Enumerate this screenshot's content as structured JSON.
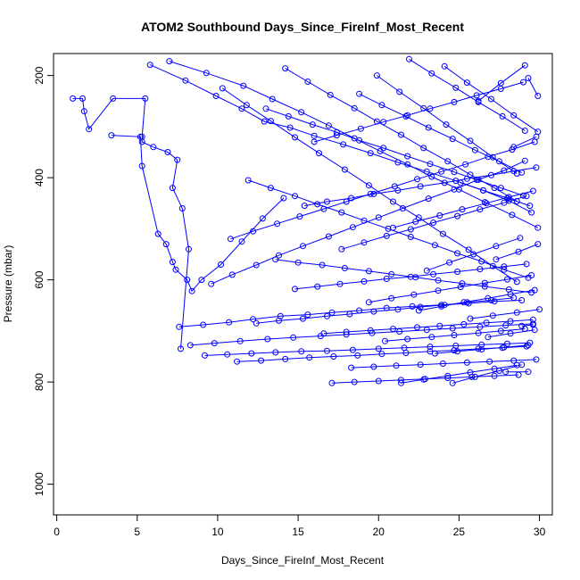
{
  "chart_data": {
    "type": "line",
    "title": "ATOM2 Southbound Days_Since_FireInf_Most_Recent",
    "xlabel": "Days_Since_FireInf_Most_Recent",
    "ylabel": "Pressure (mbar)",
    "xlim": [
      -0.2,
      30.8
    ],
    "ylim": [
      1060,
      157
    ],
    "y_reversed": true,
    "grid": false,
    "legend": "none",
    "x_ticks": [
      0,
      5,
      10,
      15,
      20,
      25,
      30
    ],
    "y_ticks": [
      200,
      400,
      600,
      800,
      1000
    ],
    "color": "#0000ff",
    "marker": "open-circle",
    "series": [
      {
        "x": [
          1.0,
          1.6,
          1.7,
          2.0,
          3.5,
          5.5,
          5.3,
          5.3,
          6.0,
          6.9,
          7.5,
          7.2,
          7.8,
          8.2,
          7.7
        ],
        "y": [
          245,
          245,
          270,
          305,
          245,
          245,
          320,
          330,
          340,
          350,
          365,
          420,
          460,
          540,
          735
        ]
      },
      {
        "x": [
          3.4,
          5.2,
          5.3,
          6.3,
          6.8,
          7.2,
          7.4,
          8.1,
          8.4,
          9.0,
          10.2,
          11.5,
          12.8,
          14.1
        ],
        "y": [
          317,
          320,
          377,
          510,
          530,
          565,
          580,
          600,
          622,
          600,
          570,
          525,
          480,
          440
        ]
      },
      {
        "x": [
          5.8,
          8.0,
          9.9,
          11.5,
          12.9,
          14.5,
          16.0,
          17.8,
          19.5,
          21.2,
          23.0,
          24.8,
          26.5,
          28.1,
          29.5
        ],
        "y": [
          179,
          210,
          240,
          265,
          290,
          302,
          318,
          335,
          352,
          370,
          388,
          406,
          425,
          445,
          468
        ]
      },
      {
        "x": [
          7.0,
          9.3,
          11.6,
          13.4,
          15.2,
          16.9,
          18.5,
          20.1,
          21.8,
          23.3,
          25.0,
          26.6,
          28.3,
          29.9
        ],
        "y": [
          172,
          195,
          220,
          246,
          272,
          298,
          323,
          348,
          374,
          398,
          423,
          448,
          473,
          498
        ]
      },
      {
        "x": [
          7.6,
          9.1,
          10.7,
          12.2,
          13.9,
          15.6,
          17.1,
          18.8,
          20.5,
          22.1,
          23.9,
          25.6,
          27.2,
          28.9
        ],
        "y": [
          692,
          688,
          683,
          677,
          671,
          668,
          664,
          660,
          655,
          652,
          649,
          646,
          642,
          640
        ]
      },
      {
        "x": [
          8.3,
          9.8,
          11.4,
          13.1,
          14.7,
          16.4,
          18.0,
          19.6,
          21.3,
          23.0,
          24.6,
          26.3,
          27.9,
          29.6
        ],
        "y": [
          728,
          724,
          720,
          716,
          713,
          710,
          707,
          704,
          701,
          698,
          695,
          692,
          689,
          686
        ]
      },
      {
        "x": [
          9.2,
          10.6,
          12.1,
          13.6,
          15.2,
          16.8,
          18.4,
          20.0,
          21.6,
          23.2,
          24.8,
          26.4,
          28.0,
          29.4
        ],
        "y": [
          748,
          746,
          744,
          742,
          740,
          739,
          737,
          735,
          733,
          731,
          729,
          727,
          725,
          723
        ]
      },
      {
        "x": [
          9.6,
          10.9,
          12.4,
          13.8,
          15.3,
          16.9,
          18.4,
          20.0,
          21.5,
          23.1,
          24.7,
          26.2,
          27.8,
          29.1
        ],
        "y": [
          608,
          590,
          571,
          552,
          534,
          515,
          497,
          478,
          460,
          441,
          423,
          404,
          386,
          367
        ]
      },
      {
        "x": [
          10.3,
          11.8,
          13.3,
          14.8,
          16.3,
          17.9,
          19.4,
          20.9,
          22.5,
          24.0,
          25.6,
          27.1,
          28.6
        ],
        "y": [
          225,
          258,
          289,
          321,
          352,
          384,
          415,
          447,
          478,
          510,
          541,
          573,
          604
        ]
      },
      {
        "x": [
          10.8,
          12.2,
          13.7,
          15.1,
          16.6,
          18.0,
          19.5,
          21.0,
          22.4,
          23.9,
          25.4,
          26.8,
          28.3,
          29.7
        ],
        "y": [
          520,
          505,
          490,
          476,
          461,
          447,
          432,
          417,
          403,
          388,
          374,
          359,
          345,
          330
        ]
      },
      {
        "x": [
          11.2,
          12.7,
          14.2,
          15.7,
          17.2,
          18.7,
          20.2,
          21.7,
          23.2,
          24.7,
          26.2,
          27.7,
          29.2
        ],
        "y": [
          760,
          758,
          755,
          752,
          750,
          748,
          745,
          743,
          740,
          738,
          735,
          733,
          730
        ]
      },
      {
        "x": [
          11.9,
          13.3,
          14.8,
          16.2,
          17.7,
          19.1,
          20.6,
          22.0,
          23.5,
          24.9,
          26.4,
          27.8,
          29.3
        ],
        "y": [
          405,
          420,
          436,
          452,
          468,
          484,
          500,
          516,
          532,
          548,
          564,
          580,
          596
        ]
      },
      {
        "x": [
          12.4,
          13.8,
          15.3,
          16.8,
          18.2,
          19.7,
          21.2,
          22.6,
          24.1,
          25.5,
          27.0,
          28.4
        ],
        "y": [
          685,
          680,
          676,
          671,
          667,
          662,
          658,
          653,
          649,
          644,
          640,
          635
        ]
      },
      {
        "x": [
          13.0,
          14.4,
          15.9,
          17.4,
          18.8,
          20.3,
          21.8,
          23.2,
          24.7,
          26.1,
          27.6,
          29.0
        ],
        "y": [
          265,
          280,
          296,
          311,
          327,
          342,
          358,
          373,
          389,
          404,
          420,
          435
        ]
      },
      {
        "x": [
          13.6,
          15.0,
          16.5,
          17.9,
          19.4,
          20.8,
          22.3,
          23.7,
          25.2,
          26.6,
          28.1,
          29.5
        ],
        "y": [
          560,
          566,
          571,
          577,
          583,
          589,
          595,
          601,
          607,
          613,
          619,
          625
        ]
      },
      {
        "x": [
          14.2,
          15.6,
          17.0,
          18.5,
          19.9,
          21.4,
          22.8,
          24.3,
          25.7,
          27.2,
          28.6
        ],
        "y": [
          186,
          212,
          238,
          264,
          290,
          316,
          342,
          368,
          394,
          420,
          446
        ]
      },
      {
        "x": [
          14.8,
          16.2,
          17.6,
          19.1,
          20.5,
          22.0,
          23.4,
          24.9,
          26.3,
          27.8,
          29.2
        ],
        "y": [
          618,
          613,
          608,
          603,
          598,
          594,
          589,
          584,
          579,
          574,
          569
        ]
      },
      {
        "x": [
          15.4,
          16.8,
          18.3,
          19.7,
          21.2,
          22.6,
          24.1,
          25.5,
          27.0,
          28.4,
          29.8
        ],
        "y": [
          455,
          447,
          440,
          432,
          425,
          417,
          410,
          402,
          395,
          387,
          380
        ]
      },
      {
        "x": [
          16.0,
          17.4,
          18.9,
          20.3,
          21.8,
          23.2,
          24.7,
          26.1,
          27.6,
          29.0
        ],
        "y": [
          330,
          317,
          304,
          291,
          278,
          265,
          252,
          239,
          226,
          213
        ]
      },
      {
        "x": [
          16.6,
          18.0,
          19.5,
          20.9,
          22.4,
          23.8,
          25.3,
          26.7,
          28.2,
          29.6
        ],
        "y": [
          705,
          702,
          699,
          696,
          693,
          690,
          687,
          684,
          681,
          678
        ]
      },
      {
        "x": [
          17.1,
          18.5,
          20.0,
          21.4,
          22.9,
          24.3,
          25.8,
          27.2,
          28.7
        ],
        "y": [
          802,
          800,
          798,
          796,
          794,
          792,
          790,
          788,
          786
        ]
      },
      {
        "x": [
          17.7,
          19.1,
          20.5,
          22.0,
          23.4,
          24.9,
          26.3,
          27.8,
          29.2
        ],
        "y": [
          540,
          527,
          514,
          501,
          488,
          475,
          462,
          449,
          436
        ]
      },
      {
        "x": [
          18.3,
          19.7,
          21.1,
          22.6,
          24.0,
          25.5,
          26.9,
          28.4,
          29.8
        ],
        "y": [
          772,
          770,
          768,
          766,
          764,
          762,
          760,
          758,
          756
        ]
      },
      {
        "x": [
          18.8,
          20.2,
          21.7,
          23.1,
          24.6,
          26.0,
          27.5,
          28.9
        ],
        "y": [
          236,
          258,
          280,
          302,
          324,
          346,
          368,
          390
        ]
      },
      {
        "x": [
          19.4,
          20.8,
          22.2,
          23.7,
          25.1,
          26.6,
          28.0,
          29.5
        ],
        "y": [
          644,
          636,
          629,
          621,
          614,
          606,
          599,
          591
        ]
      },
      {
        "x": [
          19.9,
          21.3,
          22.8,
          24.2,
          25.7,
          27.1,
          28.6
        ],
        "y": [
          200,
          232,
          264,
          296,
          328,
          360,
          392
        ]
      },
      {
        "x": [
          20.4,
          21.8,
          23.3,
          24.7,
          26.2,
          27.6,
          29.1
        ],
        "y": [
          720,
          716,
          712,
          708,
          704,
          700,
          696
        ]
      },
      {
        "x": [
          20.9,
          22.3,
          23.8,
          25.2,
          26.7,
          28.1,
          29.6
        ],
        "y": [
          498,
          486,
          474,
          462,
          450,
          438,
          426
        ]
      },
      {
        "x": [
          21.4,
          22.8,
          24.3,
          25.7,
          27.2,
          28.6
        ],
        "y": [
          802,
          795,
          788,
          781,
          774,
          767
        ]
      },
      {
        "x": [
          21.9,
          23.3,
          24.8,
          26.2,
          27.7,
          29.1
        ],
        "y": [
          168,
          196,
          224,
          252,
          280,
          308
        ]
      },
      {
        "x": [
          22.5,
          23.9,
          25.3,
          26.8,
          28.2,
          29.7
        ],
        "y": [
          660,
          652,
          644,
          636,
          628,
          620
        ]
      },
      {
        "x": [
          23.0,
          24.4,
          25.9,
          27.3,
          28.8
        ],
        "y": [
          582,
          566,
          550,
          534,
          518
        ]
      },
      {
        "x": [
          23.5,
          24.9,
          26.4,
          27.8,
          29.3
        ],
        "y": [
          744,
          740,
          736,
          732,
          728
        ]
      },
      {
        "x": [
          24.1,
          25.5,
          27.0,
          28.4,
          29.9
        ],
        "y": [
          182,
          214,
          246,
          278,
          310
        ]
      },
      {
        "x": [
          24.6,
          26.0,
          27.5,
          28.9
        ],
        "y": [
          802,
          790,
          778,
          766
        ]
      },
      {
        "x": [
          25.1,
          26.5,
          28.0,
          29.4
        ],
        "y": [
          410,
          425,
          440,
          455
        ]
      },
      {
        "x": [
          25.7,
          27.1,
          28.6,
          30.0
        ],
        "y": [
          676,
          670,
          664,
          658
        ]
      },
      {
        "x": [
          26.2,
          27.6,
          29.1
        ],
        "y": [
          250,
          215,
          180
        ]
      },
      {
        "x": [
          26.8,
          28.2,
          29.7
        ],
        "y": [
          712,
          705,
          698
        ]
      },
      {
        "x": [
          27.3,
          28.7,
          29.9
        ],
        "y": [
          560,
          545,
          530
        ]
      },
      {
        "x": [
          27.9,
          29.3
        ],
        "y": [
          780,
          780
        ]
      },
      {
        "x": [
          28.4,
          29.8
        ],
        "y": [
          340,
          320
        ]
      },
      {
        "x": [
          28.9,
          29.6
        ],
        "y": [
          690,
          688
        ]
      },
      {
        "x": [
          29.3,
          29.9
        ],
        "y": [
          205,
          240
        ]
      }
    ]
  }
}
